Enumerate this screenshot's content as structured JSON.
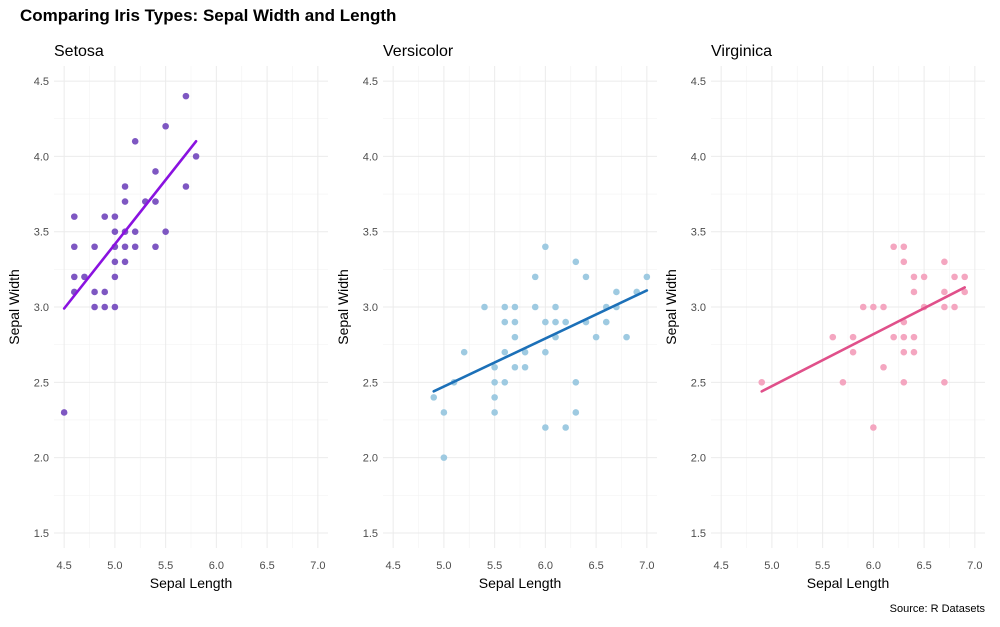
{
  "title": "Comparing Iris Types: Sepal Width and Length",
  "caption": "Source: R Datasets",
  "chart_data": [
    {
      "type": "scatter",
      "title": "Setosa",
      "xlabel": "Sepal Length",
      "ylabel": "Sepal Width",
      "xlim": [
        4.4,
        7.1
      ],
      "ylim": [
        1.4,
        4.6
      ],
      "x_ticks": [
        "4.5",
        "5.0",
        "5.5",
        "6.0",
        "6.5",
        "7.0"
      ],
      "y_ticks": [
        "1.5",
        "2.0",
        "2.5",
        "3.0",
        "3.5",
        "4.0",
        "4.5"
      ],
      "point_color": "#7e57c2",
      "line_color": "#8a12e0",
      "points": [
        [
          4.5,
          2.3
        ],
        [
          4.6,
          3.1
        ],
        [
          4.6,
          3.2
        ],
        [
          4.6,
          3.4
        ],
        [
          4.6,
          3.6
        ],
        [
          4.7,
          3.2
        ],
        [
          4.8,
          3.0
        ],
        [
          4.8,
          3.1
        ],
        [
          4.8,
          3.4
        ],
        [
          4.9,
          3.0
        ],
        [
          4.9,
          3.1
        ],
        [
          4.9,
          3.6
        ],
        [
          5.0,
          3.0
        ],
        [
          5.0,
          3.2
        ],
        [
          5.0,
          3.3
        ],
        [
          5.0,
          3.4
        ],
        [
          5.0,
          3.5
        ],
        [
          5.0,
          3.6
        ],
        [
          5.1,
          3.3
        ],
        [
          5.1,
          3.4
        ],
        [
          5.1,
          3.5
        ],
        [
          5.1,
          3.7
        ],
        [
          5.1,
          3.8
        ],
        [
          5.2,
          3.4
        ],
        [
          5.2,
          3.5
        ],
        [
          5.2,
          4.1
        ],
        [
          5.3,
          3.7
        ],
        [
          5.4,
          3.4
        ],
        [
          5.4,
          3.7
        ],
        [
          5.4,
          3.9
        ],
        [
          5.5,
          3.5
        ],
        [
          5.5,
          4.2
        ],
        [
          5.7,
          3.8
        ],
        [
          5.7,
          4.4
        ],
        [
          5.8,
          4.0
        ]
      ],
      "fit_line": [
        [
          4.5,
          2.99
        ],
        [
          5.8,
          4.1
        ]
      ]
    },
    {
      "type": "scatter",
      "title": "Versicolor",
      "xlabel": "Sepal Length",
      "ylabel": "Sepal Width",
      "xlim": [
        4.4,
        7.1
      ],
      "ylim": [
        1.4,
        4.6
      ],
      "x_ticks": [
        "4.5",
        "5.0",
        "5.5",
        "6.0",
        "6.5",
        "7.0"
      ],
      "y_ticks": [
        "1.5",
        "2.0",
        "2.5",
        "3.0",
        "3.5",
        "4.0",
        "4.5"
      ],
      "point_color": "#9ecae1",
      "line_color": "#1c70b8",
      "points": [
        [
          4.9,
          2.4
        ],
        [
          5.0,
          2.0
        ],
        [
          5.0,
          2.3
        ],
        [
          5.1,
          2.5
        ],
        [
          5.2,
          2.7
        ],
        [
          5.4,
          3.0
        ],
        [
          5.5,
          2.3
        ],
        [
          5.5,
          2.4
        ],
        [
          5.5,
          2.5
        ],
        [
          5.5,
          2.6
        ],
        [
          5.6,
          2.5
        ],
        [
          5.6,
          2.7
        ],
        [
          5.6,
          2.9
        ],
        [
          5.6,
          3.0
        ],
        [
          5.7,
          2.6
        ],
        [
          5.7,
          2.8
        ],
        [
          5.7,
          2.9
        ],
        [
          5.7,
          3.0
        ],
        [
          5.8,
          2.6
        ],
        [
          5.8,
          2.7
        ],
        [
          5.9,
          3.0
        ],
        [
          5.9,
          3.2
        ],
        [
          6.0,
          2.2
        ],
        [
          6.0,
          2.7
        ],
        [
          6.0,
          2.9
        ],
        [
          6.0,
          3.4
        ],
        [
          6.1,
          2.8
        ],
        [
          6.1,
          2.9
        ],
        [
          6.1,
          3.0
        ],
        [
          6.2,
          2.2
        ],
        [
          6.2,
          2.9
        ],
        [
          6.3,
          2.3
        ],
        [
          6.3,
          2.5
        ],
        [
          6.3,
          3.3
        ],
        [
          6.4,
          2.9
        ],
        [
          6.4,
          3.2
        ],
        [
          6.5,
          2.8
        ],
        [
          6.6,
          2.9
        ],
        [
          6.6,
          3.0
        ],
        [
          6.7,
          3.0
        ],
        [
          6.7,
          3.1
        ],
        [
          6.8,
          2.8
        ],
        [
          6.9,
          3.1
        ],
        [
          7.0,
          3.2
        ]
      ],
      "fit_line": [
        [
          4.9,
          2.44
        ],
        [
          7.0,
          3.11
        ]
      ]
    },
    {
      "type": "scatter",
      "title": "Virginica",
      "xlabel": "Sepal Length",
      "ylabel": "Sepal Width",
      "xlim": [
        4.4,
        7.1
      ],
      "ylim": [
        1.4,
        4.6
      ],
      "x_ticks": [
        "4.5",
        "5.0",
        "5.5",
        "6.0",
        "6.5",
        "7.0"
      ],
      "y_ticks": [
        "1.5",
        "2.0",
        "2.5",
        "3.0",
        "3.5",
        "4.0",
        "4.5"
      ],
      "point_color": "#f4a6c0",
      "line_color": "#e0508a",
      "points": [
        [
          4.9,
          2.5
        ],
        [
          5.6,
          2.8
        ],
        [
          5.7,
          2.5
        ],
        [
          5.8,
          2.7
        ],
        [
          5.8,
          2.8
        ],
        [
          5.9,
          3.0
        ],
        [
          6.0,
          2.2
        ],
        [
          6.0,
          3.0
        ],
        [
          6.1,
          2.6
        ],
        [
          6.1,
          3.0
        ],
        [
          6.2,
          2.8
        ],
        [
          6.2,
          3.4
        ],
        [
          6.3,
          2.5
        ],
        [
          6.3,
          2.7
        ],
        [
          6.3,
          2.8
        ],
        [
          6.3,
          2.9
        ],
        [
          6.3,
          3.3
        ],
        [
          6.3,
          3.4
        ],
        [
          6.4,
          2.7
        ],
        [
          6.4,
          2.8
        ],
        [
          6.4,
          3.1
        ],
        [
          6.4,
          3.2
        ],
        [
          6.5,
          3.0
        ],
        [
          6.5,
          3.2
        ],
        [
          6.7,
          2.5
        ],
        [
          6.7,
          3.0
        ],
        [
          6.7,
          3.1
        ],
        [
          6.7,
          3.3
        ],
        [
          6.8,
          3.0
        ],
        [
          6.8,
          3.2
        ],
        [
          6.9,
          3.1
        ],
        [
          6.9,
          3.2
        ]
      ],
      "fit_line": [
        [
          4.9,
          2.44
        ],
        [
          6.9,
          3.13
        ]
      ]
    }
  ]
}
